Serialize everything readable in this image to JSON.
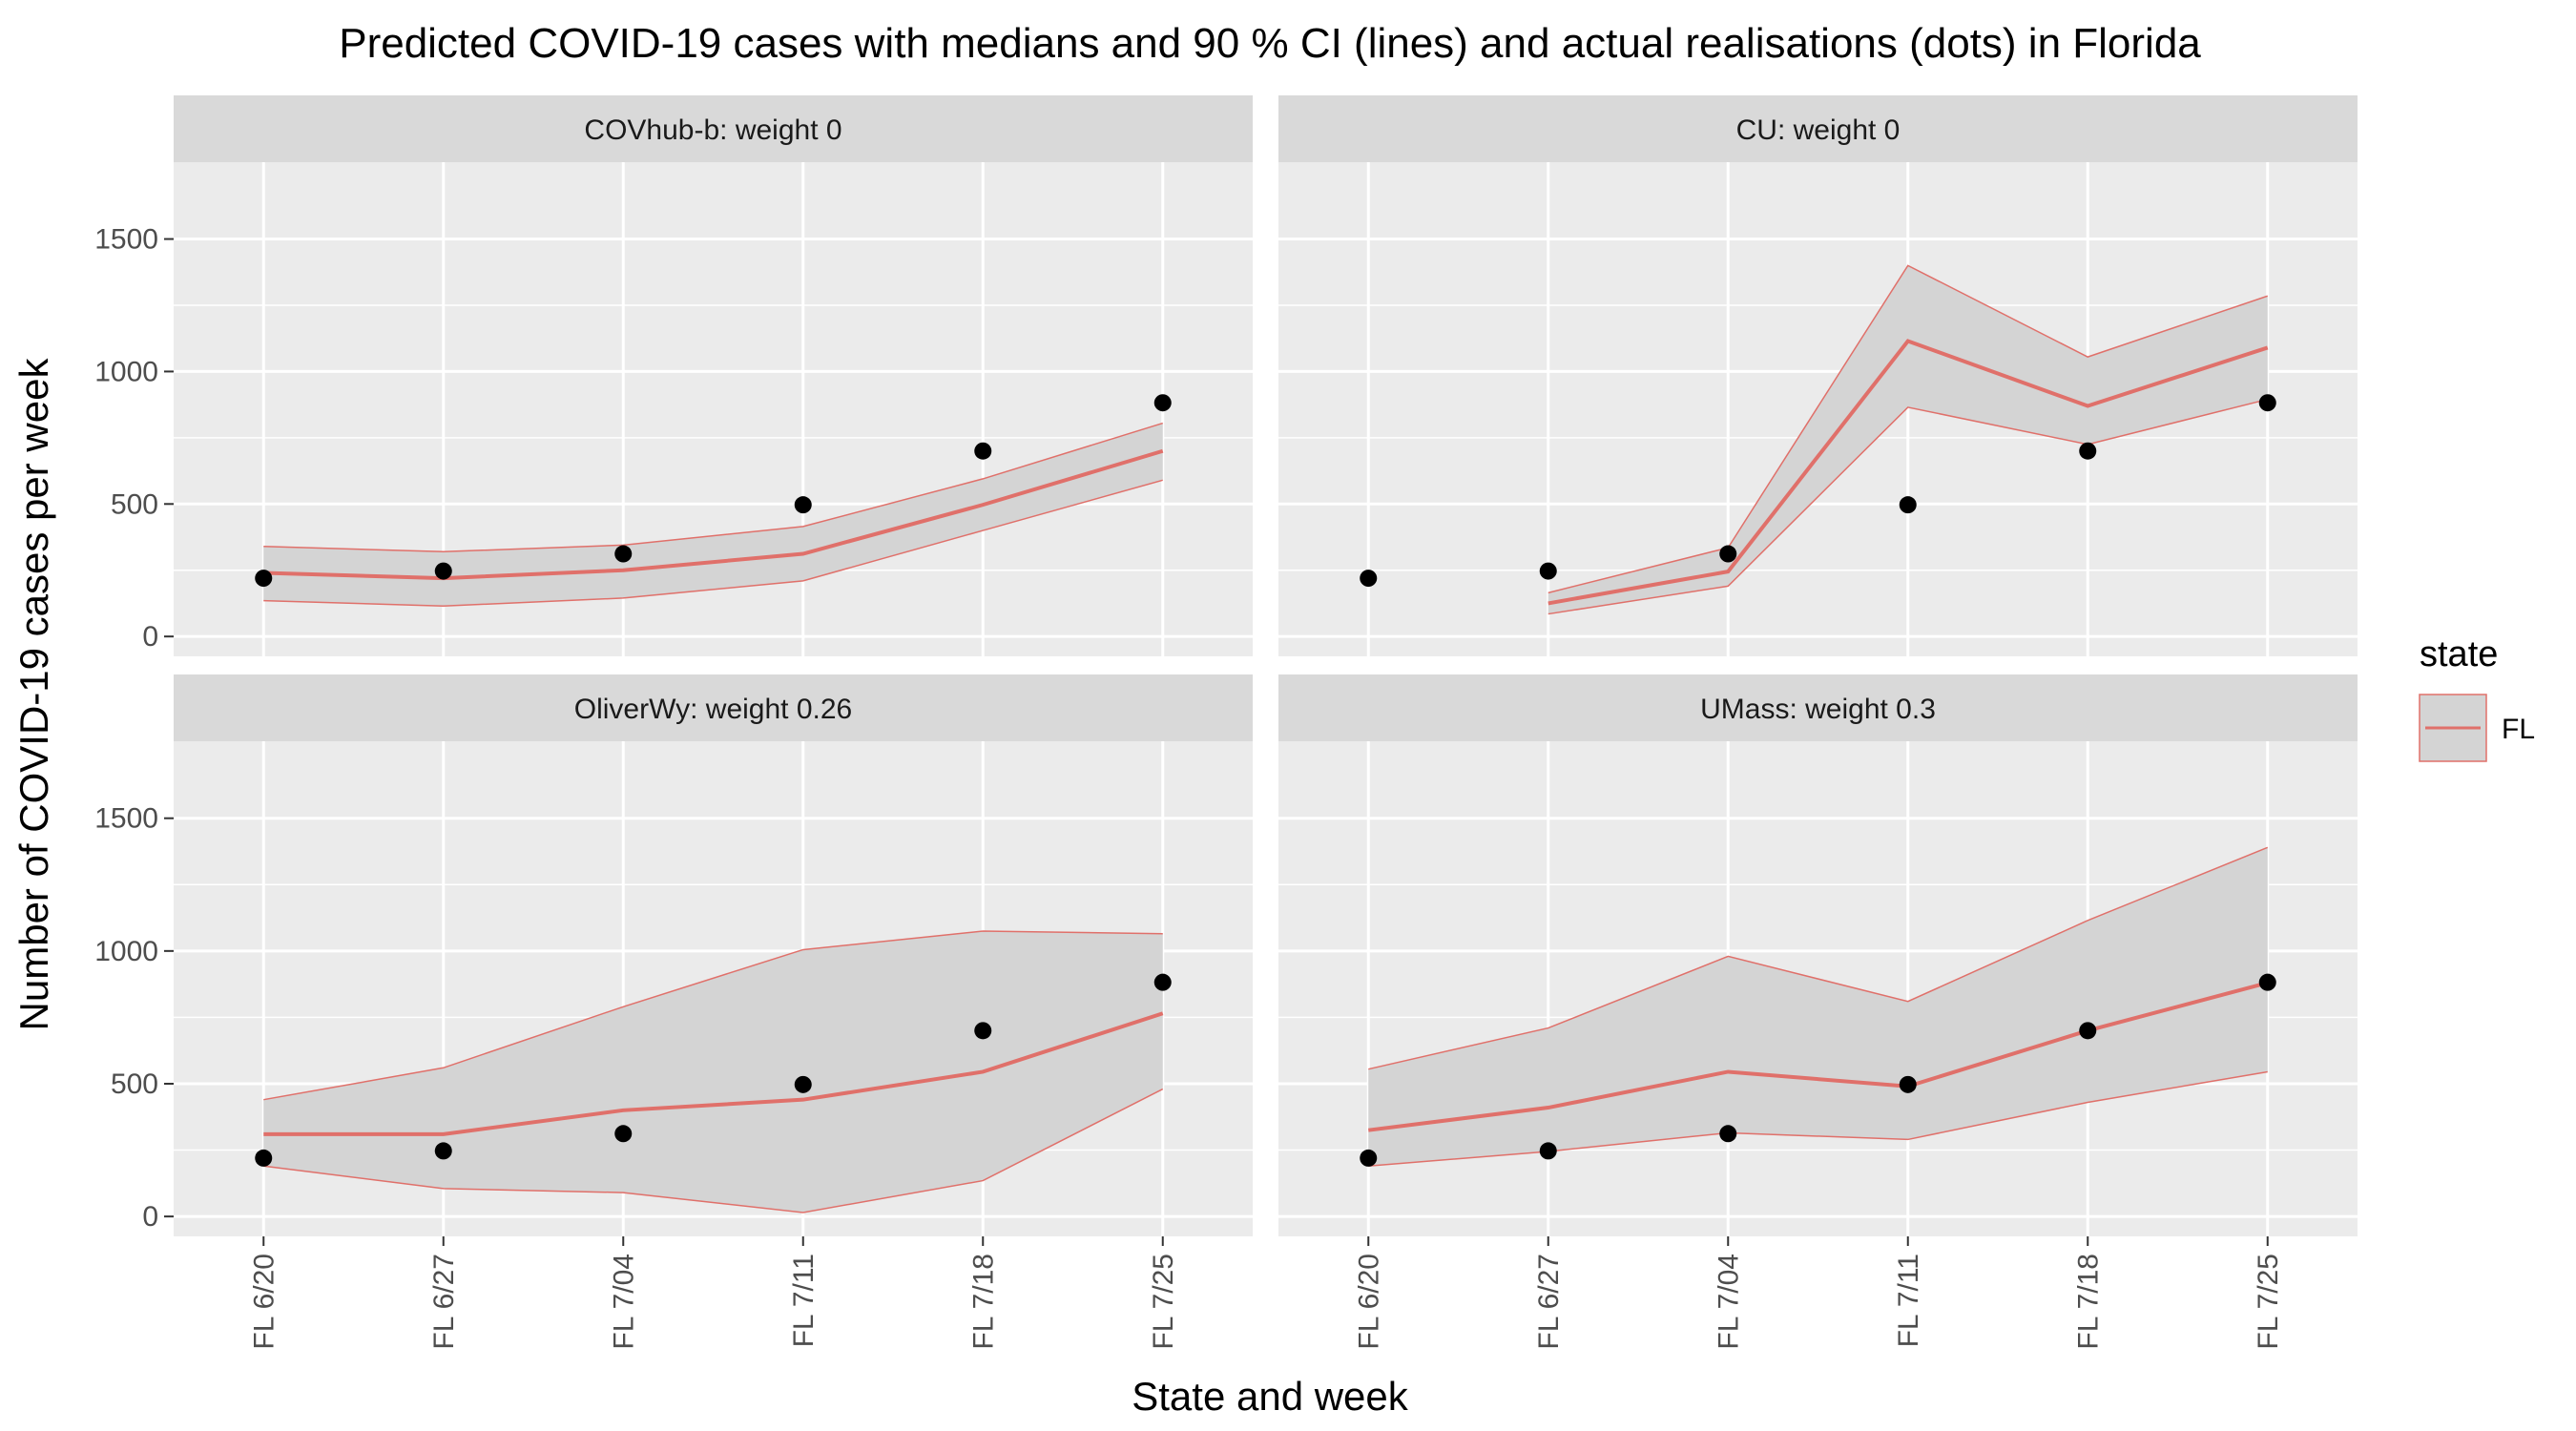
{
  "title": "Predicted COVID-19 cases with medians and 90 % CI (lines) and actual realisations (dots) in Florida",
  "x_axis_title": "State and week",
  "y_axis_title": "Number of COVID-19 cases per week",
  "legend": {
    "title": "state",
    "label": "FL",
    "color": "#e0706a"
  },
  "colors": {
    "panel_background": "#ebebeb",
    "strip_background": "#d9d9d9",
    "grid": "#ffffff",
    "ribbon_fill": "#d4d4d4",
    "line": "#e0706a",
    "points": "#000000"
  },
  "chart_data": {
    "type": "line",
    "categories": [
      "FL 6/20",
      "FL 6/27",
      "FL 7/04",
      "FL 7/11",
      "FL 7/18",
      "FL 7/25"
    ],
    "y_ticks": [
      0,
      500,
      1000,
      1500
    ],
    "ylim": [
      -75,
      1790
    ],
    "actual": [
      220,
      247,
      312,
      497,
      700,
      882
    ],
    "panels": [
      {
        "strip": "COVhub-b: weight 0",
        "median": [
          240,
          220,
          250,
          312,
          497,
          700
        ],
        "lower": [
          135,
          115,
          145,
          210,
          400,
          590
        ],
        "upper": [
          340,
          320,
          345,
          415,
          595,
          805
        ]
      },
      {
        "strip": "CU: weight 0",
        "median": [
          null,
          125,
          245,
          1115,
          870,
          1090
        ],
        "lower": [
          null,
          85,
          190,
          865,
          725,
          895
        ],
        "upper": [
          null,
          165,
          335,
          1400,
          1055,
          1285
        ]
      },
      {
        "strip": "OliverWy: weight 0.26",
        "median": [
          310,
          310,
          400,
          440,
          545,
          765
        ],
        "lower": [
          190,
          105,
          90,
          15,
          135,
          480
        ],
        "upper": [
          440,
          560,
          790,
          1005,
          1075,
          1065
        ]
      },
      {
        "strip": "UMass: weight 0.3",
        "median": [
          325,
          410,
          545,
          490,
          700,
          880
        ],
        "lower": [
          190,
          245,
          315,
          290,
          430,
          545
        ],
        "upper": [
          555,
          710,
          980,
          810,
          1115,
          1390
        ]
      }
    ]
  }
}
